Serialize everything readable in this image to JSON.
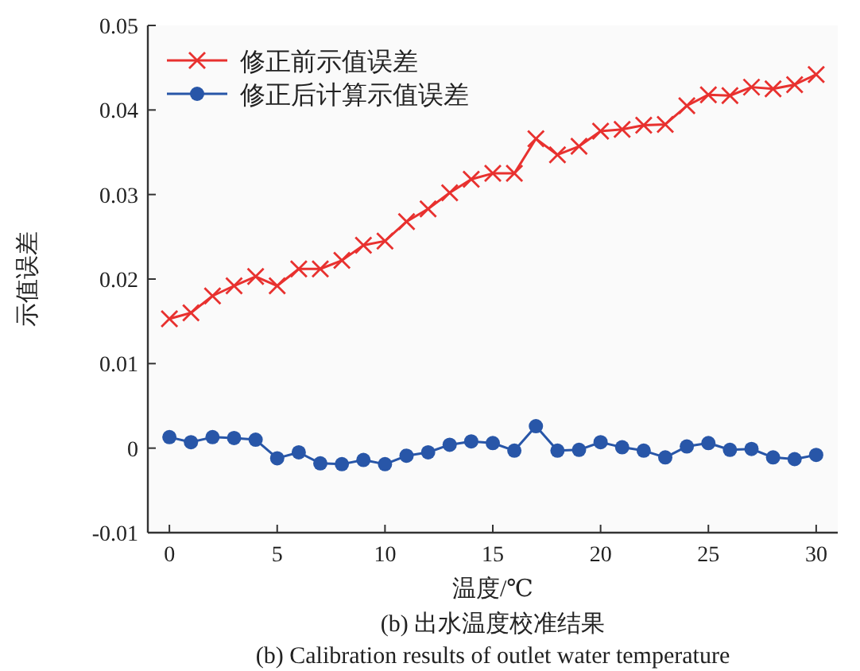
{
  "chart_data": {
    "type": "line",
    "xlabel": "温度/℃",
    "ylabel": "示值误差",
    "annotations": [
      "(b) 出水温度校准结果",
      "(b) Calibration results of outlet water temperature"
    ],
    "x": [
      0,
      1,
      2,
      3,
      4,
      5,
      6,
      7,
      8,
      9,
      10,
      11,
      12,
      13,
      14,
      15,
      16,
      17,
      18,
      19,
      20,
      21,
      22,
      23,
      24,
      25,
      26,
      27,
      28,
      29,
      30
    ],
    "series": [
      {
        "name": "修正前示值误差",
        "color": "#e8312f",
        "marker": "cross",
        "values": [
          0.0153,
          0.016,
          0.018,
          0.0192,
          0.0203,
          0.0192,
          0.0212,
          0.0212,
          0.0222,
          0.024,
          0.0245,
          0.0268,
          0.0283,
          0.0302,
          0.0318,
          0.0325,
          0.0325,
          0.0366,
          0.0347,
          0.0357,
          0.0375,
          0.0377,
          0.0382,
          0.0383,
          0.0405,
          0.0418,
          0.0417,
          0.0427,
          0.0425,
          0.043,
          0.0442
        ]
      },
      {
        "name": "修正后计算示值误差",
        "color": "#2856a8",
        "marker": "circle",
        "values": [
          0.0013,
          0.0007,
          0.0013,
          0.0012,
          0.001,
          -0.0012,
          -0.0005,
          -0.0018,
          -0.0019,
          -0.0014,
          -0.0019,
          -0.0009,
          -0.0005,
          0.0004,
          0.0008,
          0.0006,
          -0.0003,
          0.0026,
          -0.0003,
          -0.0002,
          0.0007,
          0.0001,
          -0.0003,
          -0.0011,
          0.0002,
          0.0006,
          -0.0002,
          -0.0001,
          -0.0011,
          -0.0013,
          -0.0008
        ]
      }
    ],
    "xlim": [
      -1,
      31
    ],
    "ylim": [
      -0.01,
      0.05
    ],
    "xticks": [
      0,
      5,
      10,
      15,
      20,
      25,
      30
    ],
    "yticks": [
      -0.01,
      0,
      0.01,
      0.02,
      0.03,
      0.04,
      0.05
    ],
    "grid": false,
    "legend": "top left",
    "line_style": "solid"
  }
}
